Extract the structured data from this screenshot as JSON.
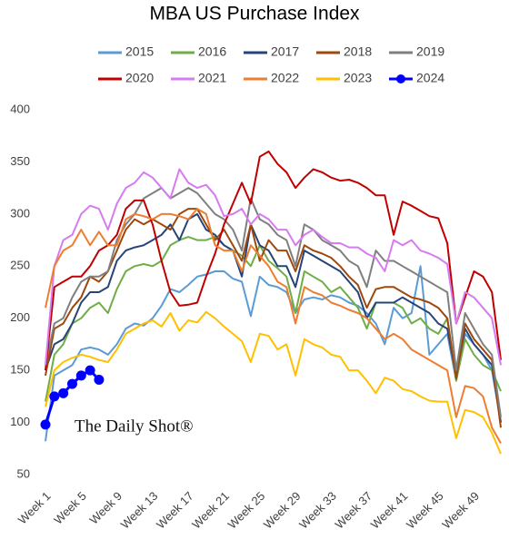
{
  "chart_data": {
    "type": "line",
    "title": "MBA US Purchase Index",
    "annotation": "The Daily Shot®",
    "categories": [
      "Week 1",
      null,
      null,
      null,
      "Week 5",
      null,
      null,
      null,
      "Week 9",
      null,
      null,
      null,
      "Week 13",
      null,
      null,
      null,
      "Week 17",
      null,
      null,
      null,
      "Week 21",
      null,
      null,
      null,
      "Week 25",
      null,
      null,
      null,
      "Week 29",
      null,
      null,
      null,
      "Week 33",
      null,
      null,
      null,
      "Week 37",
      null,
      null,
      null,
      "Week 41",
      null,
      null,
      null,
      "Week 45",
      null,
      null,
      null,
      "Week 49",
      null,
      null,
      null
    ],
    "ylim": [
      50,
      400
    ],
    "yticks": [
      50,
      100,
      150,
      200,
      250,
      300,
      350,
      400
    ],
    "grid": false,
    "series": [
      {
        "name": "2015",
        "color": "#5b9bd5",
        "values": [
          82,
          145,
          150,
          155,
          170,
          172,
          170,
          165,
          175,
          190,
          195,
          193,
          200,
          212,
          228,
          225,
          232,
          240,
          242,
          245,
          245,
          238,
          235,
          202,
          240,
          232,
          230,
          225,
          205,
          218,
          220,
          218,
          222,
          220,
          215,
          212,
          205,
          195,
          175,
          210,
          200,
          205,
          250,
          165,
          175,
          185,
          140,
          185,
          175,
          165,
          150,
          100
        ]
      },
      {
        "name": "2016",
        "color": "#70ad47",
        "values": [
          120,
          165,
          175,
          195,
          200,
          210,
          215,
          205,
          228,
          245,
          250,
          252,
          250,
          255,
          270,
          275,
          278,
          275,
          275,
          278,
          270,
          265,
          260,
          250,
          270,
          255,
          248,
          240,
          205,
          245,
          240,
          235,
          225,
          230,
          220,
          210,
          190,
          215,
          215,
          215,
          210,
          195,
          200,
          190,
          185,
          200,
          140,
          180,
          165,
          155,
          150,
          130
        ]
      },
      {
        "name": "2017",
        "color": "#264478",
        "values": [
          150,
          175,
          180,
          195,
          215,
          225,
          225,
          230,
          255,
          265,
          268,
          270,
          275,
          280,
          290,
          275,
          295,
          300,
          285,
          280,
          270,
          265,
          240,
          290,
          270,
          265,
          250,
          250,
          230,
          265,
          260,
          255,
          250,
          245,
          235,
          225,
          200,
          215,
          215,
          215,
          220,
          215,
          210,
          205,
          195,
          190,
          145,
          190,
          175,
          165,
          155,
          100
        ]
      },
      {
        "name": "2018",
        "color": "#9e480e",
        "values": [
          145,
          190,
          195,
          210,
          220,
          240,
          235,
          245,
          265,
          285,
          295,
          290,
          295,
          290,
          285,
          300,
          305,
          305,
          290,
          275,
          285,
          270,
          255,
          290,
          255,
          275,
          265,
          265,
          245,
          270,
          265,
          262,
          258,
          250,
          240,
          232,
          210,
          228,
          230,
          230,
          225,
          220,
          218,
          215,
          210,
          200,
          142,
          195,
          180,
          170,
          160,
          95
        ]
      },
      {
        "name": "2019",
        "color": "#7f7f7f",
        "values": [
          155,
          195,
          200,
          220,
          235,
          240,
          240,
          245,
          275,
          290,
          300,
          315,
          320,
          325,
          315,
          320,
          325,
          320,
          310,
          300,
          295,
          285,
          265,
          315,
          295,
          290,
          280,
          275,
          250,
          290,
          285,
          275,
          270,
          265,
          255,
          250,
          230,
          265,
          255,
          255,
          250,
          245,
          240,
          235,
          230,
          225,
          150,
          205,
          190,
          175,
          165,
          105
        ]
      },
      {
        "name": "2020",
        "color": "#c00000",
        "values": [
          150,
          230,
          235,
          240,
          240,
          250,
          265,
          270,
          280,
          305,
          313,
          313,
          290,
          255,
          225,
          212,
          213,
          215,
          240,
          262,
          290,
          310,
          330,
          310,
          355,
          360,
          348,
          340,
          325,
          335,
          343,
          340,
          335,
          332,
          333,
          330,
          325,
          318,
          318,
          280,
          312,
          308,
          303,
          298,
          296,
          272,
          195,
          220,
          245,
          240,
          225,
          160
        ]
      },
      {
        "name": "2021",
        "color": "#d67bf0",
        "values": [
          155,
          250,
          275,
          280,
          300,
          308,
          305,
          285,
          310,
          325,
          330,
          340,
          335,
          325,
          315,
          343,
          330,
          325,
          328,
          318,
          298,
          300,
          305,
          290,
          300,
          295,
          285,
          285,
          270,
          280,
          285,
          278,
          272,
          272,
          268,
          268,
          262,
          258,
          245,
          275,
          270,
          275,
          265,
          262,
          258,
          252,
          195,
          225,
          220,
          210,
          200,
          155
        ]
      },
      {
        "name": "2022",
        "color": "#ed7d31",
        "values": [
          210,
          250,
          265,
          270,
          285,
          270,
          283,
          270,
          270,
          295,
          300,
          298,
          295,
          300,
          300,
          298,
          295,
          305,
          300,
          270,
          265,
          265,
          245,
          270,
          260,
          250,
          235,
          230,
          195,
          230,
          225,
          222,
          215,
          212,
          208,
          205,
          200,
          190,
          180,
          185,
          180,
          170,
          165,
          160,
          155,
          150,
          105,
          135,
          133,
          125,
          95,
          80
        ]
      },
      {
        "name": "2023",
        "color": "#ffc000",
        "values": [
          115,
          150,
          158,
          162,
          165,
          163,
          160,
          158,
          170,
          185,
          190,
          195,
          198,
          192,
          205,
          188,
          198,
          196,
          206,
          200,
          192,
          185,
          178,
          158,
          185,
          183,
          170,
          175,
          145,
          180,
          175,
          172,
          165,
          163,
          150,
          150,
          140,
          128,
          143,
          140,
          132,
          130,
          125,
          121,
          120,
          120,
          85,
          112,
          110,
          105,
          90,
          70
        ]
      },
      {
        "name": "2024",
        "color": "#0000ff",
        "markers": true,
        "values": [
          98,
          125,
          128,
          137,
          145,
          150,
          141,
          null,
          null,
          null,
          null,
          null,
          null,
          null,
          null,
          null,
          null,
          null,
          null,
          null,
          null,
          null,
          null,
          null,
          null,
          null,
          null,
          null,
          null,
          null,
          null,
          null,
          null,
          null,
          null,
          null,
          null,
          null,
          null,
          null,
          null,
          null,
          null,
          null,
          null,
          null,
          null,
          null,
          null,
          null,
          null,
          null
        ]
      }
    ]
  }
}
